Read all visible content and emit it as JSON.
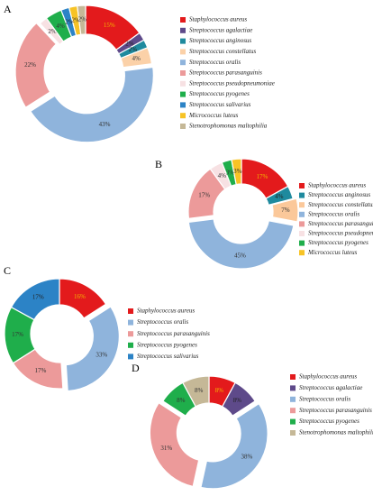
{
  "chart_data": [
    {
      "type": "pie",
      "panel": "A",
      "categories": [
        "Staphylococcus aureus",
        "Streptococcus agalactiae",
        "Streptococcus anginosus",
        "Streptococcus constellatus",
        "Streptococcus oralis",
        "Streptococcus parasanguinis",
        "Streptococcus pseudopneumoniae",
        "Streptococcus pyogenes",
        "Streptococcus salivarius",
        "Micrococcus luteus",
        "Stenotrophomonas maltophilia"
      ],
      "values": [
        15,
        2,
        2,
        4,
        43,
        22,
        2,
        4,
        2,
        2,
        2
      ],
      "labels": [
        "15%",
        "2%",
        "2%",
        "4%",
        "43%",
        "22%",
        "2%",
        "4%",
        "2%",
        "2%",
        "2%"
      ],
      "colors": [
        "#e31a1c",
        "#5e4a8a",
        "#1f8a9e",
        "#fbd1a8",
        "#8fb4dc",
        "#ec9a9a",
        "#f7e1e3",
        "#1fae4b",
        "#2c83c6",
        "#f7c325",
        "#c5b897"
      ],
      "legend": "right"
    },
    {
      "type": "pie",
      "panel": "B",
      "categories": [
        "Staphylococcus aureus",
        "Streptococcus anginosus",
        "Streptococcus constellatus",
        "Streptococcus oralis",
        "Streptococcus parasanguinis",
        "Streptococcus pseudopneumoniae",
        "Streptococcus pyogenes",
        "Micrococcus luteus"
      ],
      "values": [
        17,
        4,
        7,
        45,
        17,
        4,
        3,
        3
      ],
      "labels": [
        "17%",
        "4%",
        "7%",
        "45%",
        "17%",
        "4%",
        "3%",
        "3%"
      ],
      "colors": [
        "#e31a1c",
        "#1f8a9e",
        "#fbc89a",
        "#8fb4dc",
        "#ec9a9a",
        "#f7e1e3",
        "#1fae4b",
        "#f7c325"
      ],
      "legend": "right"
    },
    {
      "type": "pie",
      "panel": "C",
      "categories": [
        "Staphylococcus aureus",
        "Streptococcus oralis",
        "Streptococcus parasanguinis",
        "Streptococcus pyogenes",
        "Streptococcus salivarius"
      ],
      "values": [
        16,
        33,
        17,
        17,
        17
      ],
      "labels": [
        "16%",
        "33%",
        "17%",
        "17%",
        "17%"
      ],
      "colors": [
        "#e31a1c",
        "#8fb4dc",
        "#ec9a9a",
        "#1fae4b",
        "#2c83c6"
      ],
      "legend": "right"
    },
    {
      "type": "pie",
      "panel": "D",
      "categories": [
        "Staphylococcus aureus",
        "Streptococcus agalactiae",
        "Streptococcus oralis",
        "Streptococcus parasanguinis",
        "Streptococcus pyogenes",
        "Stenotrophomonas maltophilia"
      ],
      "values": [
        8,
        8,
        38,
        31,
        8,
        8
      ],
      "labels": [
        "8%",
        "8%",
        "38%",
        "31%",
        "8%",
        "8%"
      ],
      "colors": [
        "#e31a1c",
        "#5e4a8a",
        "#8fb4dc",
        "#ec9a9a",
        "#1fae4b",
        "#c5b897"
      ],
      "legend": "right"
    }
  ]
}
